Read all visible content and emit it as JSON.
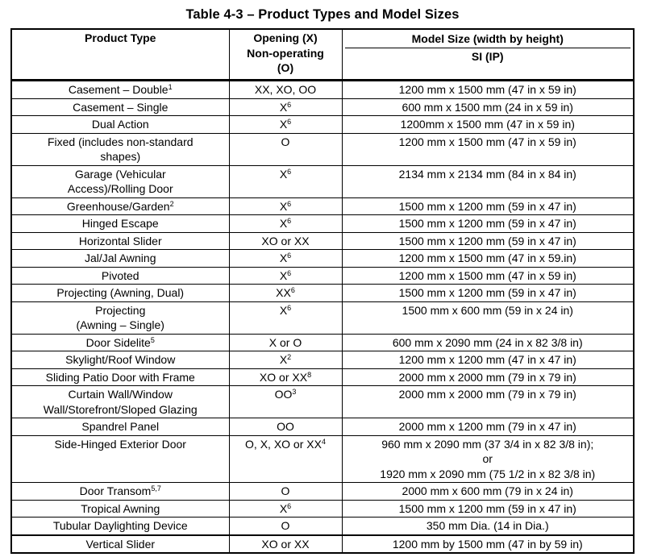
{
  "title": "Table 4-3 – Product Types and Model Sizes",
  "table": {
    "headers": {
      "col1": "Product Type",
      "col2_lines": [
        "Opening (X)",
        "Non-operating",
        "(O)"
      ],
      "col3_top": "Model Size (width by height)",
      "col3_bottom": "SI (IP)"
    },
    "rows": [
      {
        "product": [
          "Casement – Double"
        ],
        "product_sup": "1",
        "opening": "XX, XO, OO",
        "opening_sup": "",
        "size": [
          "1200 mm x 1500 mm (47 in x 59 in)"
        ]
      },
      {
        "product": [
          "Casement – Single"
        ],
        "product_sup": "",
        "opening": "X",
        "opening_sup": "6",
        "size": [
          "600 mm x 1500 mm (24 in x 59 in)"
        ]
      },
      {
        "product": [
          "Dual Action"
        ],
        "product_sup": "",
        "opening": "X",
        "opening_sup": "6",
        "size": [
          "1200mm x 1500 mm (47 in x 59 in)"
        ]
      },
      {
        "product": [
          "Fixed (includes non-standard",
          "shapes)"
        ],
        "product_sup": "",
        "opening": "O",
        "opening_sup": "",
        "size": [
          "1200 mm x 1500 mm (47 in x 59 in)"
        ]
      },
      {
        "product": [
          "Garage (Vehicular",
          "Access)/Rolling Door"
        ],
        "product_sup": "",
        "opening": "X",
        "opening_sup": "6",
        "size": [
          "2134 mm x 2134 mm (84 in x 84 in)"
        ]
      },
      {
        "product": [
          "Greenhouse/Garden"
        ],
        "product_sup": "2",
        "opening": "X",
        "opening_sup": "6",
        "size": [
          "1500 mm x 1200 mm (59 in x 47 in)"
        ]
      },
      {
        "product": [
          "Hinged Escape"
        ],
        "product_sup": "",
        "opening": "X",
        "opening_sup": "6",
        "size": [
          "1500 mm x 1200 mm (59 in x 47 in)"
        ]
      },
      {
        "product": [
          "Horizontal Slider"
        ],
        "product_sup": "",
        "opening": "XO or XX",
        "opening_sup": "",
        "size": [
          "1500 mm x 1200 mm (59 in x 47 in)"
        ]
      },
      {
        "product": [
          "Jal/Jal Awning"
        ],
        "product_sup": "",
        "opening": "X",
        "opening_sup": "6",
        "size": [
          "1200 mm x 1500 mm (47 in x 59.in)"
        ]
      },
      {
        "product": [
          "Pivoted"
        ],
        "product_sup": "",
        "opening": "X",
        "opening_sup": "6",
        "size": [
          "1200 mm x 1500 mm (47 in x 59 in)"
        ]
      },
      {
        "product": [
          "Projecting (Awning, Dual)"
        ],
        "product_sup": "",
        "opening": "XX",
        "opening_sup": "6",
        "size": [
          "1500 mm x 1200 mm (59 in x 47 in)"
        ]
      },
      {
        "product": [
          "Projecting",
          "(Awning – Single)"
        ],
        "product_sup": "",
        "opening": "X",
        "opening_sup": "6",
        "size": [
          "1500 mm x 600 mm (59 in x 24 in)"
        ]
      },
      {
        "product": [
          "Door Sidelite"
        ],
        "product_sup": "5",
        "opening": "X or O",
        "opening_sup": "",
        "size": [
          "600 mm x 2090 mm (24 in x 82 3/8 in)"
        ]
      },
      {
        "product": [
          "Skylight/Roof Window"
        ],
        "product_sup": "",
        "opening": "X",
        "opening_sup": "2",
        "size": [
          "1200 mm x 1200 mm (47 in x 47 in)"
        ]
      },
      {
        "product": [
          "Sliding Patio Door with Frame"
        ],
        "product_sup": "",
        "opening": "XO or XX",
        "opening_sup": "8",
        "size": [
          "2000 mm x 2000 mm (79 in x 79 in)"
        ]
      },
      {
        "product": [
          "Curtain Wall/Window",
          "Wall/Storefront/Sloped Glazing"
        ],
        "product_sup": "",
        "opening": "OO",
        "opening_sup": "3",
        "size": [
          "2000 mm x 2000 mm (79 in x 79 in)"
        ]
      },
      {
        "product": [
          "Spandrel Panel"
        ],
        "product_sup": "",
        "opening": "OO",
        "opening_sup": "",
        "size": [
          "2000 mm x 1200 mm (79 in x 47 in)"
        ]
      },
      {
        "product": [
          "Side-Hinged Exterior Door"
        ],
        "product_sup": "",
        "opening": "O, X, XO or XX",
        "opening_sup": "4",
        "size": [
          "960 mm x 2090 mm (37 3/4 in x 82 3/8 in);",
          "or",
          "1920 mm x 2090 mm (75 1/2 in x 82 3/8 in)"
        ]
      },
      {
        "product": [
          "Door Transom"
        ],
        "product_sup": "5,7",
        "opening": "O",
        "opening_sup": "",
        "size": [
          "2000 mm x 600 mm (79 in x 24 in)"
        ]
      },
      {
        "product": [
          "Tropical Awning"
        ],
        "product_sup": "",
        "opening": "X",
        "opening_sup": "6",
        "size": [
          "1500 mm x 1200 mm (59 in x 47 in)"
        ]
      },
      {
        "product": [
          "Tubular Daylighting Device"
        ],
        "product_sup": "",
        "opening": "O",
        "opening_sup": "",
        "size": [
          "350 mm Dia. (14 in Dia.)"
        ]
      },
      {
        "product": [
          "Vertical Slider"
        ],
        "product_sup": "",
        "opening": "XO or XX",
        "opening_sup": "",
        "size": [
          "1200 mm by 1500 mm (47 in by 59 in)"
        ],
        "thick_top": true
      }
    ]
  }
}
